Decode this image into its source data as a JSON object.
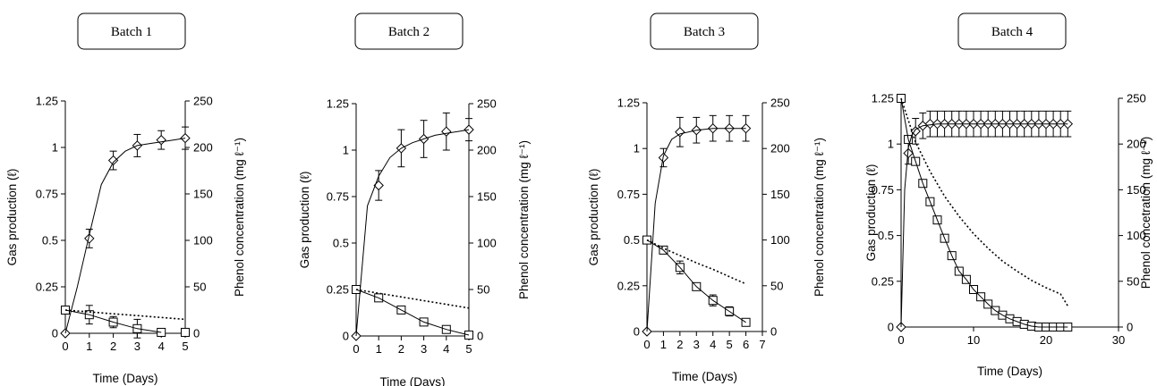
{
  "chart_data": [
    {
      "type": "line",
      "title": "Batch 1",
      "xlabel": "Time (Days)",
      "ylabel": "Gas production (ℓ)",
      "y2label": "Phenol concentration (mg ℓ⁻¹)",
      "xlim": [
        0,
        5
      ],
      "xticks": [
        0,
        1,
        2,
        3,
        4,
        5
      ],
      "ylim": [
        0,
        1.25
      ],
      "yticks": [
        "0",
        "0.25",
        "0.5",
        "0.75",
        "1",
        "1.25"
      ],
      "y2lim": [
        0,
        250
      ],
      "y2ticks": [
        "0",
        "50",
        "100",
        "150",
        "200",
        "250"
      ],
      "grid": false,
      "legend": "none",
      "series": [
        {
          "marker": "diamond",
          "axis": "left",
          "x": [
            0,
            1,
            2,
            3,
            4,
            5
          ],
          "y": [
            0,
            0.51,
            0.93,
            1.01,
            1.04,
            1.05
          ],
          "err": [
            0,
            0.05,
            0.05,
            0.06,
            0.05,
            0.06
          ]
        },
        {
          "marker": "square",
          "axis": "right",
          "x": [
            0,
            1,
            2,
            3,
            4,
            5
          ],
          "y": [
            25,
            20,
            12,
            5,
            1,
            1
          ],
          "err": [
            0,
            10,
            6,
            10,
            0,
            0
          ]
        },
        {
          "style": "solid-fit",
          "axis": "left",
          "x": [
            0,
            0.5,
            1,
            1.5,
            2,
            2.5,
            3,
            3.5,
            4,
            4.5,
            5
          ],
          "y": [
            0,
            0.25,
            0.53,
            0.8,
            0.92,
            0.98,
            1.01,
            1.02,
            1.03,
            1.04,
            1.05
          ]
        },
        {
          "style": "solid-fit",
          "axis": "right",
          "x": [
            0,
            1,
            2,
            3,
            4
          ],
          "y": [
            25,
            20,
            12,
            5,
            1
          ]
        },
        {
          "style": "dotted",
          "axis": "right",
          "x": [
            0,
            1,
            2,
            3,
            4,
            5
          ],
          "y": [
            25,
            23,
            21,
            19,
            17,
            15
          ]
        }
      ]
    },
    {
      "type": "line",
      "title": "Batch 2",
      "xlabel": "Time (Days)",
      "ylabel": "Gas production (ℓ)",
      "y2label": "Phenol concentration (mg ℓ⁻¹)",
      "xlim": [
        0,
        5
      ],
      "xticks": [
        0,
        1,
        2,
        3,
        4,
        5
      ],
      "ylim": [
        0,
        1.25
      ],
      "yticks": [
        "0",
        "0.25",
        "0.5",
        "0.75",
        "1",
        "1.25"
      ],
      "y2lim": [
        0,
        250
      ],
      "y2ticks": [
        "0",
        "50",
        "100",
        "150",
        "200",
        "250"
      ],
      "grid": false,
      "legend": "none",
      "series": [
        {
          "marker": "diamond",
          "axis": "left",
          "x": [
            0,
            1,
            2,
            3,
            4,
            5
          ],
          "y": [
            0,
            0.81,
            1.01,
            1.06,
            1.1,
            1.11
          ],
          "err": [
            0,
            0.08,
            0.1,
            0.1,
            0.1,
            0.06
          ]
        },
        {
          "marker": "square",
          "axis": "right",
          "x": [
            0,
            1,
            2,
            3,
            4,
            5
          ],
          "y": [
            50,
            41,
            28,
            15,
            7,
            1
          ],
          "err": [
            0,
            0,
            0,
            0,
            0,
            0
          ]
        },
        {
          "style": "solid-fit",
          "axis": "left",
          "x": [
            0,
            0.5,
            1,
            1.5,
            2,
            2.5,
            3,
            3.5,
            4,
            4.5,
            5
          ],
          "y": [
            0,
            0.7,
            0.86,
            0.96,
            1.01,
            1.04,
            1.06,
            1.08,
            1.09,
            1.1,
            1.11
          ]
        },
        {
          "style": "solid-fit",
          "axis": "right",
          "x": [
            0,
            1,
            2,
            3,
            4,
            5
          ],
          "y": [
            50,
            41,
            28,
            15,
            7,
            1
          ]
        },
        {
          "style": "dotted",
          "axis": "right",
          "x": [
            0,
            1,
            2,
            3,
            4,
            5
          ],
          "y": [
            50,
            46,
            42,
            38,
            34,
            30
          ]
        }
      ]
    },
    {
      "type": "line",
      "title": "Batch 3",
      "xlabel": "Time (Days)",
      "ylabel": "Gas production (ℓ)",
      "y2label": "Phenol concentration (mg ℓ⁻¹)",
      "xlim": [
        0,
        7
      ],
      "xticks": [
        0,
        1,
        2,
        3,
        4,
        5,
        6,
        7
      ],
      "ylim": [
        0,
        1.25
      ],
      "yticks": [
        "0",
        "0.25",
        "0.5",
        "0.75",
        "1",
        "1.25"
      ],
      "y2lim": [
        0,
        250
      ],
      "y2ticks": [
        "0",
        "50",
        "100",
        "150",
        "200",
        "250"
      ],
      "grid": false,
      "legend": "none",
      "series": [
        {
          "marker": "diamond",
          "axis": "left",
          "x": [
            0,
            1,
            2,
            3,
            4,
            5,
            6
          ],
          "y": [
            0,
            0.95,
            1.09,
            1.1,
            1.11,
            1.11,
            1.11
          ],
          "err": [
            0,
            0.05,
            0.08,
            0.07,
            0.07,
            0.07,
            0.07
          ]
        },
        {
          "marker": "square",
          "axis": "right",
          "x": [
            0,
            1,
            2,
            3,
            4,
            5,
            6
          ],
          "y": [
            100,
            89,
            70,
            49,
            34,
            22,
            10
          ],
          "err": [
            0,
            3,
            7,
            3,
            6,
            5,
            3
          ]
        },
        {
          "style": "solid-fit",
          "axis": "left",
          "x": [
            0,
            0.5,
            1,
            1.5,
            2,
            3,
            4,
            5,
            6
          ],
          "y": [
            0,
            0.7,
            0.96,
            1.05,
            1.08,
            1.1,
            1.11,
            1.11,
            1.11
          ]
        },
        {
          "style": "solid-fit",
          "axis": "right",
          "x": [
            0,
            1,
            2,
            3,
            4,
            5,
            6
          ],
          "y": [
            100,
            89,
            70,
            49,
            34,
            22,
            10
          ]
        },
        {
          "style": "dotted",
          "axis": "right",
          "x": [
            0,
            1,
            2,
            3,
            4,
            5,
            6
          ],
          "y": [
            100,
            91,
            83,
            75,
            68,
            60,
            52
          ]
        }
      ]
    },
    {
      "type": "line",
      "title": "Batch 4",
      "xlabel": "Time (Days)",
      "ylabel": "Gas production (ℓ)",
      "y2label": "Phenol concetration (mg ℓ⁻¹)",
      "xlim": [
        0,
        30
      ],
      "xticks": [
        0,
        10,
        20,
        30
      ],
      "ylim": [
        0,
        1.25
      ],
      "yticks": [
        "0",
        "0.25",
        "0.5",
        "0.75",
        "1",
        "1.25"
      ],
      "y2lim": [
        0,
        250
      ],
      "y2ticks": [
        "0",
        "50",
        "100",
        "150",
        "200",
        "250"
      ],
      "grid": false,
      "legend": "none",
      "series": [
        {
          "marker": "diamond",
          "axis": "left",
          "x": [
            0,
            1,
            2,
            3,
            4,
            5,
            6,
            7,
            8,
            9,
            10,
            11,
            12,
            13,
            14,
            15,
            16,
            17,
            18,
            19,
            20,
            21,
            22,
            23
          ],
          "y": [
            0,
            0.95,
            1.07,
            1.1,
            1.11,
            1.11,
            1.11,
            1.11,
            1.11,
            1.11,
            1.11,
            1.11,
            1.11,
            1.11,
            1.11,
            1.11,
            1.11,
            1.11,
            1.11,
            1.11,
            1.11,
            1.11,
            1.11,
            1.11
          ],
          "err": [
            0,
            0.06,
            0.07,
            0.07,
            0.07,
            0.07,
            0.07,
            0.07,
            0.07,
            0.07,
            0.07,
            0.07,
            0.07,
            0.07,
            0.07,
            0.07,
            0.07,
            0.07,
            0.07,
            0.07,
            0.07,
            0.07,
            0.07,
            0.07
          ]
        },
        {
          "marker": "square",
          "axis": "right",
          "x": [
            0,
            1,
            2,
            3,
            4,
            5,
            6,
            7,
            8,
            9,
            10,
            11,
            12,
            13,
            14,
            15,
            16,
            17,
            18,
            19,
            20,
            21,
            22,
            23
          ],
          "y": [
            250,
            205,
            181,
            157,
            137,
            117,
            97,
            78,
            61,
            52,
            41,
            33,
            25,
            18,
            13,
            9,
            6,
            3,
            1,
            0,
            0,
            0,
            0,
            0
          ],
          "err": [
            0,
            0,
            0,
            0,
            0,
            0,
            0,
            0,
            0,
            0,
            0,
            0,
            0,
            0,
            0,
            0,
            0,
            0,
            0,
            0,
            0,
            0,
            0,
            0
          ]
        },
        {
          "style": "solid-fit",
          "axis": "left",
          "x": [
            0,
            0.5,
            1,
            1.5,
            2,
            3,
            5,
            10,
            15,
            20,
            23
          ],
          "y": [
            0,
            0.75,
            0.98,
            1.05,
            1.08,
            1.1,
            1.11,
            1.11,
            1.11,
            1.11,
            1.11
          ]
        },
        {
          "style": "solid-fit",
          "axis": "right",
          "x": [
            0,
            1,
            2,
            3,
            4,
            5,
            6,
            7,
            8,
            9,
            10,
            11,
            12,
            13,
            14,
            15,
            16,
            17,
            18,
            19,
            20,
            21,
            22,
            23
          ],
          "y": [
            250,
            205,
            181,
            157,
            137,
            117,
            97,
            78,
            61,
            52,
            41,
            33,
            25,
            18,
            13,
            9,
            6,
            3,
            1,
            0,
            0,
            0,
            0,
            0
          ]
        },
        {
          "style": "dotted",
          "axis": "right",
          "x": [
            0,
            2,
            4,
            6,
            8,
            10,
            12,
            14,
            16,
            18,
            20,
            22,
            23
          ],
          "y": [
            250,
            202,
            170,
            143,
            121,
            102,
            86,
            72,
            61,
            51,
            43,
            36,
            23
          ]
        }
      ]
    }
  ]
}
